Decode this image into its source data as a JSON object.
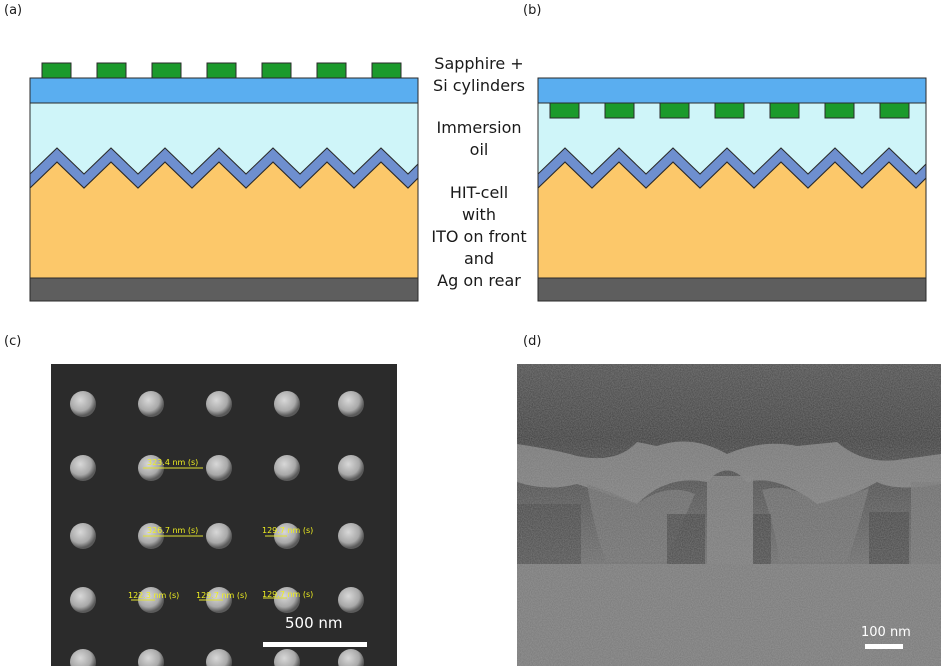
{
  "panels": {
    "a": "(a)",
    "b": "(b)",
    "c": "(c)",
    "d": "(d)"
  },
  "layers": {
    "top_line1": "Sapphire +",
    "top_line2": "Si cylinders",
    "oil_line1": "Immersion",
    "oil_line2": "oil",
    "cell_line1": "HIT-cell",
    "cell_line2": "with",
    "cell_line3": "ITO on front",
    "cell_line4": "and",
    "cell_line5": "Ag on rear"
  },
  "sem_c": {
    "scale_label": "500 nm",
    "measurements": [
      "323.4 nm (s)",
      "326.7 nm (s)",
      "129.7 nm (s)",
      "122.3 nm (s)",
      "129.7 nm (s)",
      "129.7 nm (s)"
    ]
  },
  "sem_d": {
    "scale_label": "100 nm"
  },
  "colors": {
    "sapphire": "#5aaef0",
    "oil": "#cff5f9",
    "ito": "#6e8fcf",
    "cell": "#fcc86a",
    "ag": "#5e5e5e",
    "cylinder": "#1b9a2c"
  }
}
